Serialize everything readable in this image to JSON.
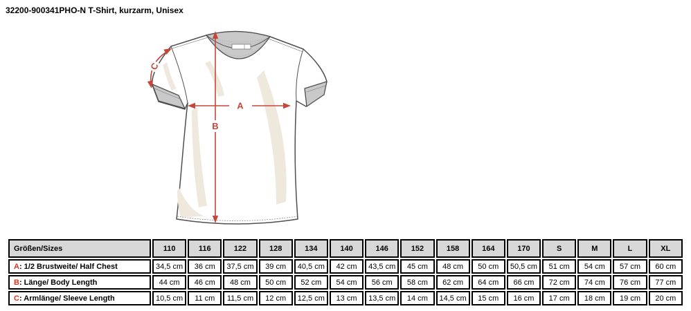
{
  "page": {
    "title": "32200-900341PHO-N T-Shirt, kurzarm, Unisex",
    "background": "#ffffff"
  },
  "diagram": {
    "labels": {
      "a": "A",
      "b": "B",
      "c": "C"
    },
    "colors": {
      "arrow_red": "#c6473a",
      "outline_gray": "#4f4f4f",
      "rib_gray": "#c9c9c9",
      "shadow_cream": "#efe8dd"
    }
  },
  "size_table": {
    "corner_header": "Größen/Sizes",
    "sizes": [
      "110",
      "116",
      "122",
      "128",
      "134",
      "140",
      "146",
      "152",
      "158",
      "164",
      "170",
      "S",
      "M",
      "L",
      "XL"
    ],
    "rows": [
      {
        "letter": "A",
        "label": ": 1/2 Brustweite/ Half Chest",
        "values": [
          "34,5 cm",
          "36 cm",
          "37,5 cm",
          "39 cm",
          "40,5 cm",
          "42 cm",
          "43,5 cm",
          "45 cm",
          "48 cm",
          "50 cm",
          "50,5 cm",
          "51 cm",
          "54 cm",
          "57 cm",
          "60 cm"
        ]
      },
      {
        "letter": "B",
        "label": ": Länge/ Body Length",
        "values": [
          "44 cm",
          "46 cm",
          "48 cm",
          "50 cm",
          "52 cm",
          "54 cm",
          "56 cm",
          "58 cm",
          "62 cm",
          "64 cm",
          "66 cm",
          "72 cm",
          "74 cm",
          "76 cm",
          "77 cm"
        ]
      },
      {
        "letter": "C",
        "label": ": Armlänge/ Sleeve Length",
        "values": [
          "10,5 cm",
          "11 cm",
          "11,5 cm",
          "12 cm",
          "12,5 cm",
          "13 cm",
          "13,5 cm",
          "14 cm",
          "14,5 cm",
          "15 cm",
          "16 cm",
          "17 cm",
          "18 cm",
          "19 cm",
          "20 cm"
        ]
      }
    ],
    "colors": {
      "header_bg": "#d8d8d8",
      "border": "#000000",
      "prefix_red": "#e0301e"
    }
  }
}
